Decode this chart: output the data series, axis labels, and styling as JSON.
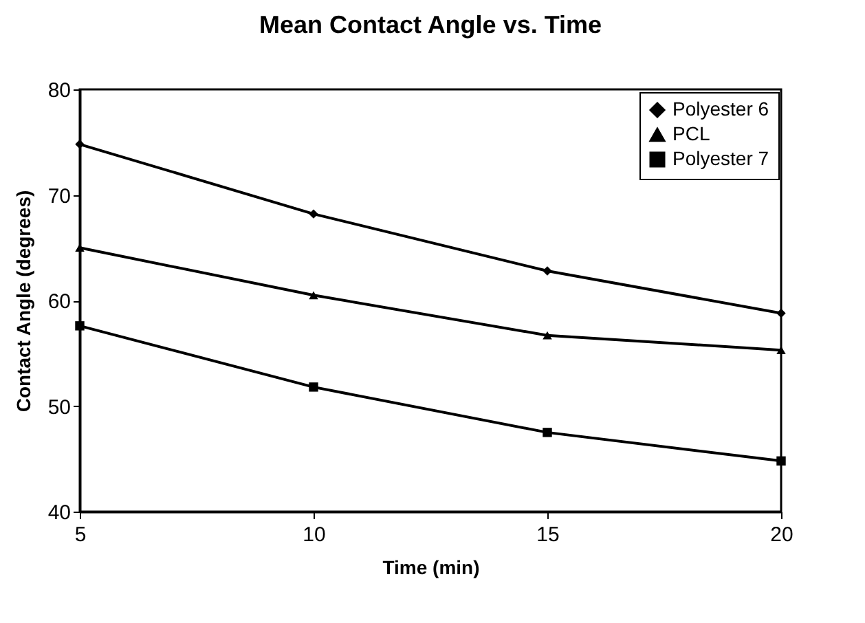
{
  "chart_data": {
    "type": "line",
    "title": "Mean Contact Angle vs. Time",
    "xlabel": "Time (min)",
    "ylabel": "Contact Angle (degrees)",
    "x": [
      5,
      10,
      15,
      20
    ],
    "series": [
      {
        "name": "Polyester 6",
        "color": "#000000",
        "marker": "diamond",
        "values": [
          74.8,
          68.2,
          62.8,
          58.8
        ]
      },
      {
        "name": "PCL",
        "color": "#000000",
        "marker": "triangle",
        "values": [
          65.0,
          60.5,
          56.7,
          55.3
        ]
      },
      {
        "name": "Polyester 7",
        "color": "#000000",
        "marker": "square",
        "values": [
          57.6,
          51.8,
          47.5,
          44.8
        ]
      }
    ],
    "xlim": [
      5,
      20
    ],
    "xticks": [
      5,
      10,
      15,
      20
    ],
    "ylim": [
      40,
      80
    ],
    "yticks": [
      40,
      50,
      60,
      70,
      80
    ],
    "grid": false,
    "legend": "top right",
    "line_style": "solid"
  }
}
